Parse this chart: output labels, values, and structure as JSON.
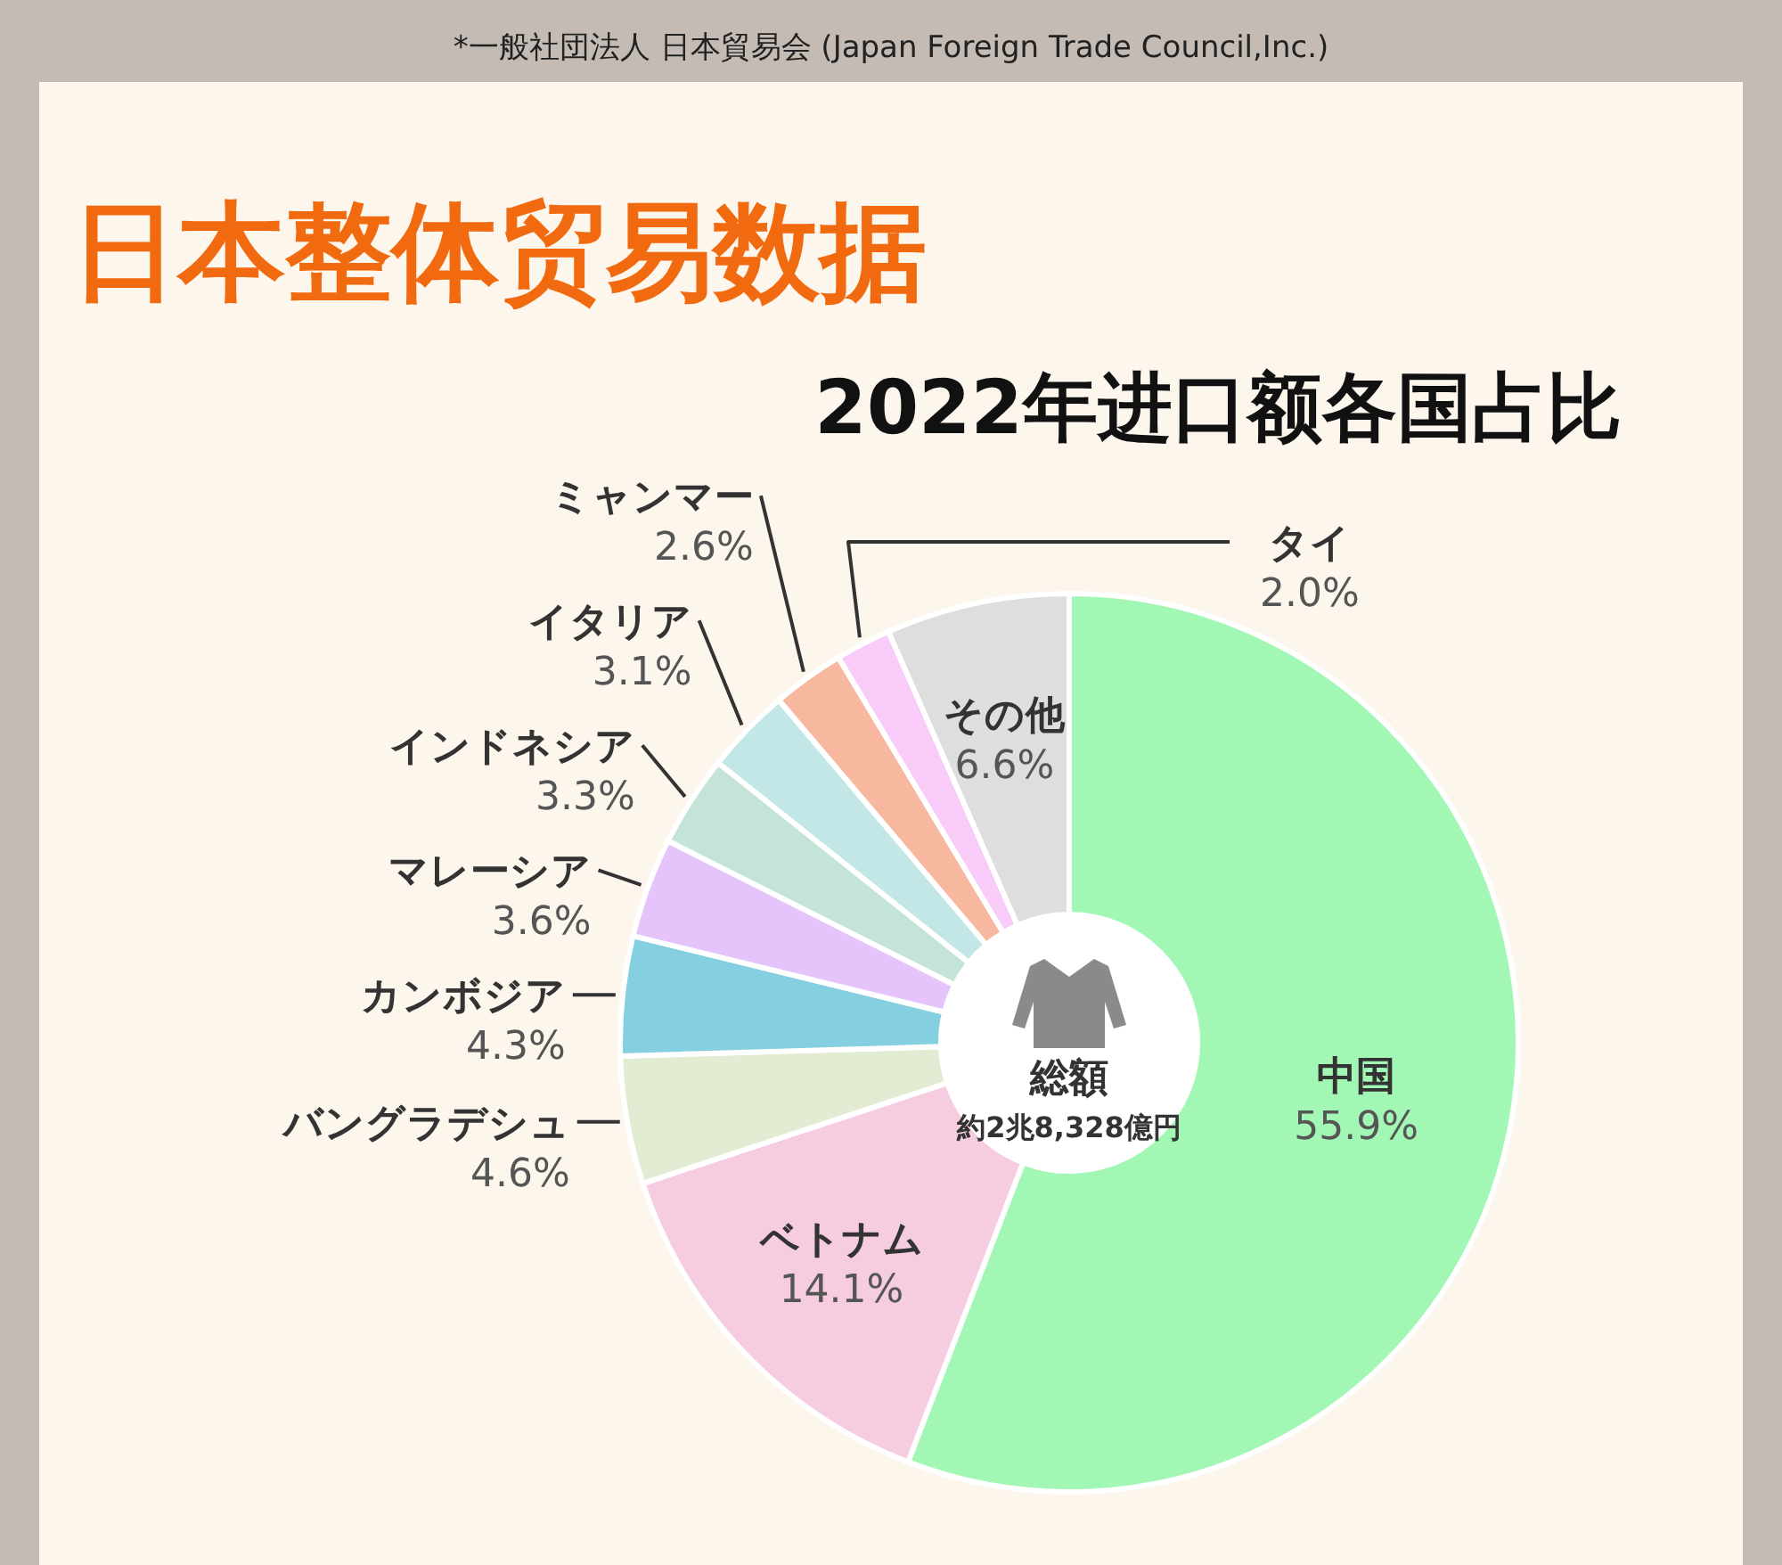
{
  "chart_data": {
    "type": "donut",
    "title": "日本整体贸易数据",
    "subtitle": "2022年进口额各国占比",
    "categories": [
      "中国",
      "ベトナム",
      "バングラデシュ",
      "カンボジア",
      "マレーシア",
      "インドネシア",
      "イタリア",
      "ミャンマー",
      "タイ",
      "その他"
    ],
    "values": [
      55.9,
      14.1,
      4.6,
      4.3,
      3.6,
      3.3,
      3.1,
      2.6,
      2.0,
      6.6
    ],
    "value_labels": [
      "55.9%",
      "14.1%",
      "4.6%",
      "4.3%",
      "3.6%",
      "3.3%",
      "3.1%",
      "2.6%",
      "2.0%",
      "6.6%"
    ],
    "colors": [
      "#a3f7b5",
      "#f6cde0",
      "#e2ecd2",
      "#85d0e0",
      "#e5c4fb",
      "#c3e4d6",
      "#c2e7e6",
      "#f8b8a0",
      "#f8cbf8",
      "#dedede"
    ],
    "annotations": [
      "*一般社団法人 日本貿易会 (Japan Foreign Trade Council,Inc.)",
      "総額",
      "約2兆8,328億円"
    ]
  }
}
